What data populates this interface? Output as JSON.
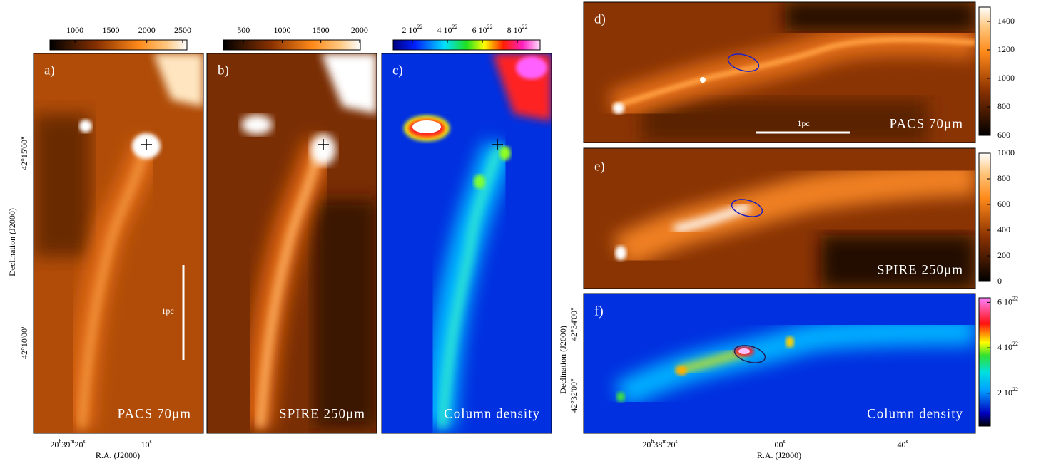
{
  "panels": [
    {
      "label": "a)",
      "caption": "PACS 70μm",
      "scale_bar": "1pc",
      "colorbar": {
        "range": [
          650,
          2560
        ],
        "ticks": [
          1000,
          1500,
          2000,
          2500
        ]
      }
    },
    {
      "label": "b)",
      "caption": "SPIRE 250μm",
      "colorbar": {
        "range": [
          240,
          2010
        ],
        "ticks": [
          500,
          1000,
          1500,
          2000
        ]
      }
    },
    {
      "label": "c)",
      "caption": "Column density",
      "colorbar": {
        "range": [
          9e+21,
          9.3e+22
        ],
        "ticks": [
          {
            "value": 2e+22,
            "mantissa": "2 10",
            "exponent": "22"
          },
          {
            "value": 4e+22,
            "mantissa": "4 10",
            "exponent": "22"
          },
          {
            "value": 6e+22,
            "mantissa": "6 10",
            "exponent": "22"
          },
          {
            "value": 8e+22,
            "mantissa": "8 10",
            "exponent": "22"
          }
        ]
      }
    },
    {
      "label": "d)",
      "caption": "PACS 70μm",
      "scale_bar": "1pc",
      "colorbar": {
        "range": [
          600,
          1500
        ],
        "ticks": [
          1400,
          1200,
          1000,
          800,
          600
        ]
      }
    },
    {
      "label": "e)",
      "caption": "SPIRE 250μm",
      "colorbar": {
        "range": [
          0,
          1000
        ],
        "ticks": [
          1000,
          800,
          600,
          400,
          200,
          0
        ]
      }
    },
    {
      "label": "f)",
      "caption": "Column density",
      "colorbar": {
        "range": [
          5.5e+21,
          6.2e+22
        ],
        "ticks": [
          {
            "value": 6e+22,
            "mantissa": "6 10",
            "exponent": "22"
          },
          {
            "value": 4e+22,
            "mantissa": "4 10",
            "exponent": "22"
          },
          {
            "value": 2e+22,
            "mantissa": "2 10",
            "exponent": "22"
          }
        ]
      }
    }
  ],
  "left_axes": {
    "y_label": "Declination (J2000)",
    "y_ticks": [
      "42°15'00\"",
      "42°10'00\""
    ],
    "x_label": "R.A. (J2000)",
    "x_ticks": [
      [
        "20",
        "h",
        "39",
        "m",
        "20",
        "s"
      ],
      [
        "10",
        "s"
      ]
    ]
  },
  "right_axes": {
    "y_label": "Declination (J2000)",
    "y_ticks": [
      "42°34'00\"",
      "42°32'00\""
    ],
    "x_label": "R.A. (J2000)",
    "x_ticks": [
      [
        "20",
        "h",
        "38",
        "m",
        "20",
        "s"
      ],
      [
        "00",
        "s"
      ],
      [
        "40",
        "s"
      ]
    ]
  }
}
